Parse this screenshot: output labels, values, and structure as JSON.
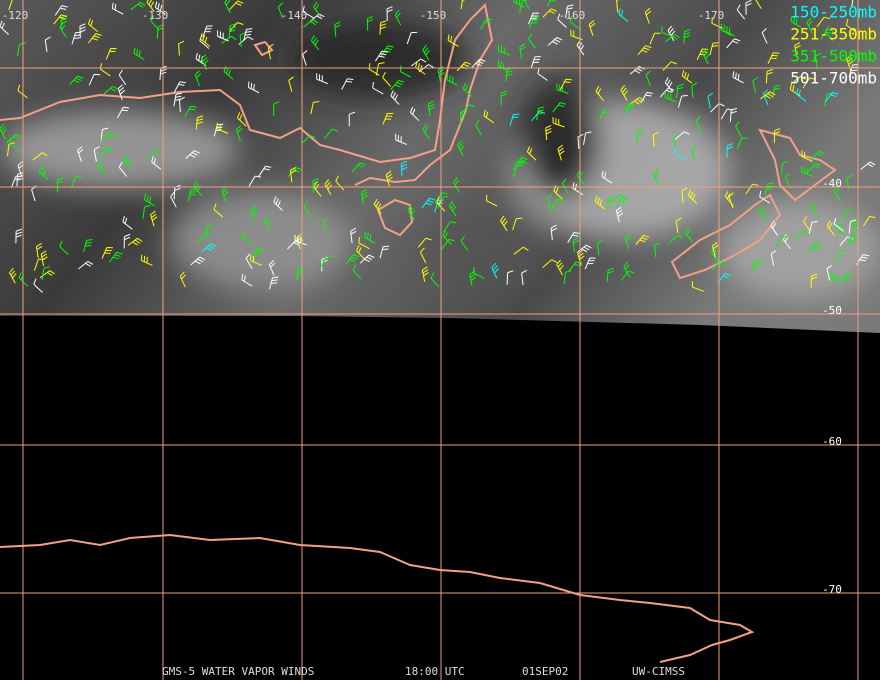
{
  "grid": {
    "longitude_labels": [
      "-120",
      "-130",
      "-140",
      "-150",
      "-160",
      "-170"
    ],
    "latitude_labels": [
      "-40",
      "-50",
      "-60",
      "-70"
    ]
  },
  "legend": [
    {
      "label": "150-250mb",
      "color": "#00ffff"
    },
    {
      "label": "251-350mb",
      "color": "#ffff00"
    },
    {
      "label": "351-500mb",
      "color": "#00ff00"
    },
    {
      "label": "501-700mb",
      "color": "#ffffff"
    }
  ],
  "footer": {
    "product": "GMS-5 WATER VAPOR WINDS",
    "time": "18:00 UTC",
    "date": "01SEP02",
    "credit": "UW-CIMSS"
  }
}
